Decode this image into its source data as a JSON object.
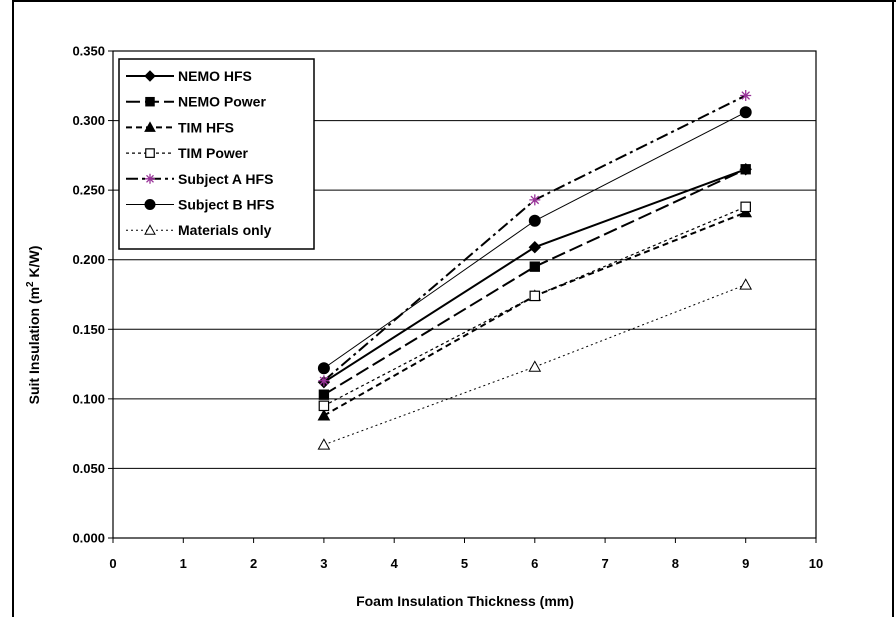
{
  "chart_data": {
    "type": "line",
    "title": "",
    "xlabel": "Foam Insulation Thickness (mm)",
    "ylabel_main": "Suit Insulation (m",
    "ylabel_sup": "2",
    "ylabel_tail": " K/W)",
    "xlim": [
      0,
      10
    ],
    "ylim": [
      0,
      0.35
    ],
    "x_ticks": [
      "0",
      "1",
      "2",
      "3",
      "4",
      "5",
      "6",
      "7",
      "8",
      "9",
      "10"
    ],
    "y_ticks": [
      "0.000",
      "0.050",
      "0.100",
      "0.150",
      "0.200",
      "0.250",
      "0.300",
      "0.350"
    ],
    "grid": "horizontal",
    "legend_position": "top-left",
    "series": [
      {
        "name": "NEMO HFS",
        "x": [
          3,
          6,
          9
        ],
        "values": [
          0.112,
          0.209,
          0.265
        ],
        "marker": "diamond",
        "dash": "",
        "width": 2,
        "color": "#000000"
      },
      {
        "name": "NEMO Power",
        "x": [
          3,
          6,
          9
        ],
        "values": [
          0.103,
          0.195,
          0.265
        ],
        "marker": "square",
        "dash": "14,5",
        "width": 2,
        "color": "#000000"
      },
      {
        "name": "TIM HFS",
        "x": [
          3,
          6,
          9
        ],
        "values": [
          0.088,
          0.174,
          0.234
        ],
        "marker": "triangle",
        "dash": "6,4",
        "width": 2,
        "color": "#000000"
      },
      {
        "name": "TIM Power",
        "x": [
          3,
          6,
          9
        ],
        "values": [
          0.095,
          0.174,
          0.238
        ],
        "marker": "square-open",
        "dash": "3,3",
        "width": 1.2,
        "color": "#000000"
      },
      {
        "name": "Subject A HFS",
        "x": [
          3,
          6,
          9
        ],
        "values": [
          0.113,
          0.243,
          0.318
        ],
        "marker": "star",
        "dash": "12,4,3,4",
        "width": 2,
        "color": "#000000",
        "marker_color": "#993399"
      },
      {
        "name": "Subject B HFS",
        "x": [
          3,
          6,
          9
        ],
        "values": [
          0.122,
          0.228,
          0.306
        ],
        "marker": "circle",
        "dash": "",
        "width": 1,
        "color": "#000000"
      },
      {
        "name": "Materials only",
        "x": [
          3,
          6,
          9
        ],
        "values": [
          0.067,
          0.123,
          0.182
        ],
        "marker": "triangle-open",
        "dash": "2,3",
        "width": 1,
        "color": "#000000"
      }
    ]
  }
}
